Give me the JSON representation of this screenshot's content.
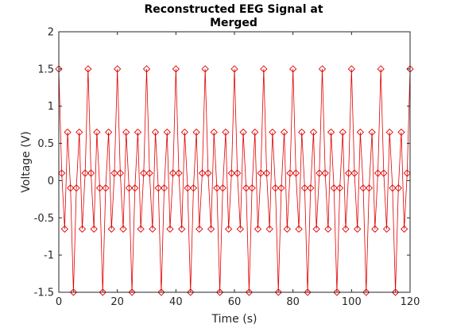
{
  "chart_data": {
    "type": "line",
    "title": [
      "Reconstructed EEG Signal at",
      "Merged"
    ],
    "xlabel": "Time (s)",
    "ylabel": "Voltage (V)",
    "xlim": [
      0,
      120
    ],
    "ylim": [
      -1.5,
      2
    ],
    "xticks": [
      0,
      20,
      40,
      60,
      80,
      100,
      120
    ],
    "yticks": [
      -1.5,
      -1,
      -0.5,
      0,
      0.5,
      1,
      1.5,
      2
    ],
    "xtick_labels": [
      "0",
      "20",
      "40",
      "60",
      "80",
      "100",
      "120"
    ],
    "ytick_labels": [
      "-1.5",
      "-1",
      "-0.5",
      "0",
      "0.5",
      "1",
      "1.5",
      "2"
    ],
    "grid": false,
    "color": "#e00000",
    "marker": "diamond",
    "pattern_period": 10,
    "pattern_values": [
      1.5,
      0.1,
      -0.65,
      0.65,
      -0.1,
      -1.5,
      -0.1,
      0.65,
      -0.65,
      0.1
    ],
    "series": [
      {
        "x": [
          0,
          1,
          2,
          3,
          4,
          5,
          6,
          7,
          8,
          9,
          10,
          11,
          12,
          13,
          14,
          15,
          16,
          17,
          18,
          19,
          20,
          21,
          22,
          23,
          24,
          25,
          26,
          27,
          28,
          29,
          30,
          31,
          32,
          33,
          34,
          35,
          36,
          37,
          38,
          39,
          40,
          41,
          42,
          43,
          44,
          45,
          46,
          47,
          48,
          49,
          50,
          51,
          52,
          53,
          54,
          55,
          56,
          57,
          58,
          59,
          60,
          61,
          62,
          63,
          64,
          65,
          66,
          67,
          68,
          69,
          70,
          71,
          72,
          73,
          74,
          75,
          76,
          77,
          78,
          79,
          80,
          81,
          82,
          83,
          84,
          85,
          86,
          87,
          88,
          89,
          90,
          91,
          92,
          93,
          94,
          95,
          96,
          97,
          98,
          99,
          100,
          101,
          102,
          103,
          104,
          105,
          106,
          107,
          108,
          109,
          110,
          111,
          112,
          113,
          114,
          115,
          116,
          117,
          118,
          119,
          120
        ],
        "y": [
          1.5,
          0.1,
          -0.65,
          0.65,
          -0.1,
          -1.5,
          -0.1,
          0.65,
          -0.65,
          0.1,
          1.5,
          0.1,
          -0.65,
          0.65,
          -0.1,
          -1.5,
          -0.1,
          0.65,
          -0.65,
          0.1,
          1.5,
          0.1,
          -0.65,
          0.65,
          -0.1,
          -1.5,
          -0.1,
          0.65,
          -0.65,
          0.1,
          1.5,
          0.1,
          -0.65,
          0.65,
          -0.1,
          -1.5,
          -0.1,
          0.65,
          -0.65,
          0.1,
          1.5,
          0.1,
          -0.65,
          0.65,
          -0.1,
          -1.5,
          -0.1,
          0.65,
          -0.65,
          0.1,
          1.5,
          0.1,
          -0.65,
          0.65,
          -0.1,
          -1.5,
          -0.1,
          0.65,
          -0.65,
          0.1,
          1.5,
          0.1,
          -0.65,
          0.65,
          -0.1,
          -1.5,
          -0.1,
          0.65,
          -0.65,
          0.1,
          1.5,
          0.1,
          -0.65,
          0.65,
          -0.1,
          -1.5,
          -0.1,
          0.65,
          -0.65,
          0.1,
          1.5,
          0.1,
          -0.65,
          0.65,
          -0.1,
          -1.5,
          -0.1,
          0.65,
          -0.65,
          0.1,
          1.5,
          0.1,
          -0.65,
          0.65,
          -0.1,
          -1.5,
          -0.1,
          0.65,
          -0.65,
          0.1,
          1.5,
          0.1,
          -0.65,
          0.65,
          -0.1,
          -1.5,
          -0.1,
          0.65,
          -0.65,
          0.1,
          1.5,
          0.1,
          -0.65,
          0.65,
          -0.1,
          -1.5,
          -0.1,
          0.65,
          -0.65,
          0.1,
          1.5
        ]
      }
    ]
  }
}
